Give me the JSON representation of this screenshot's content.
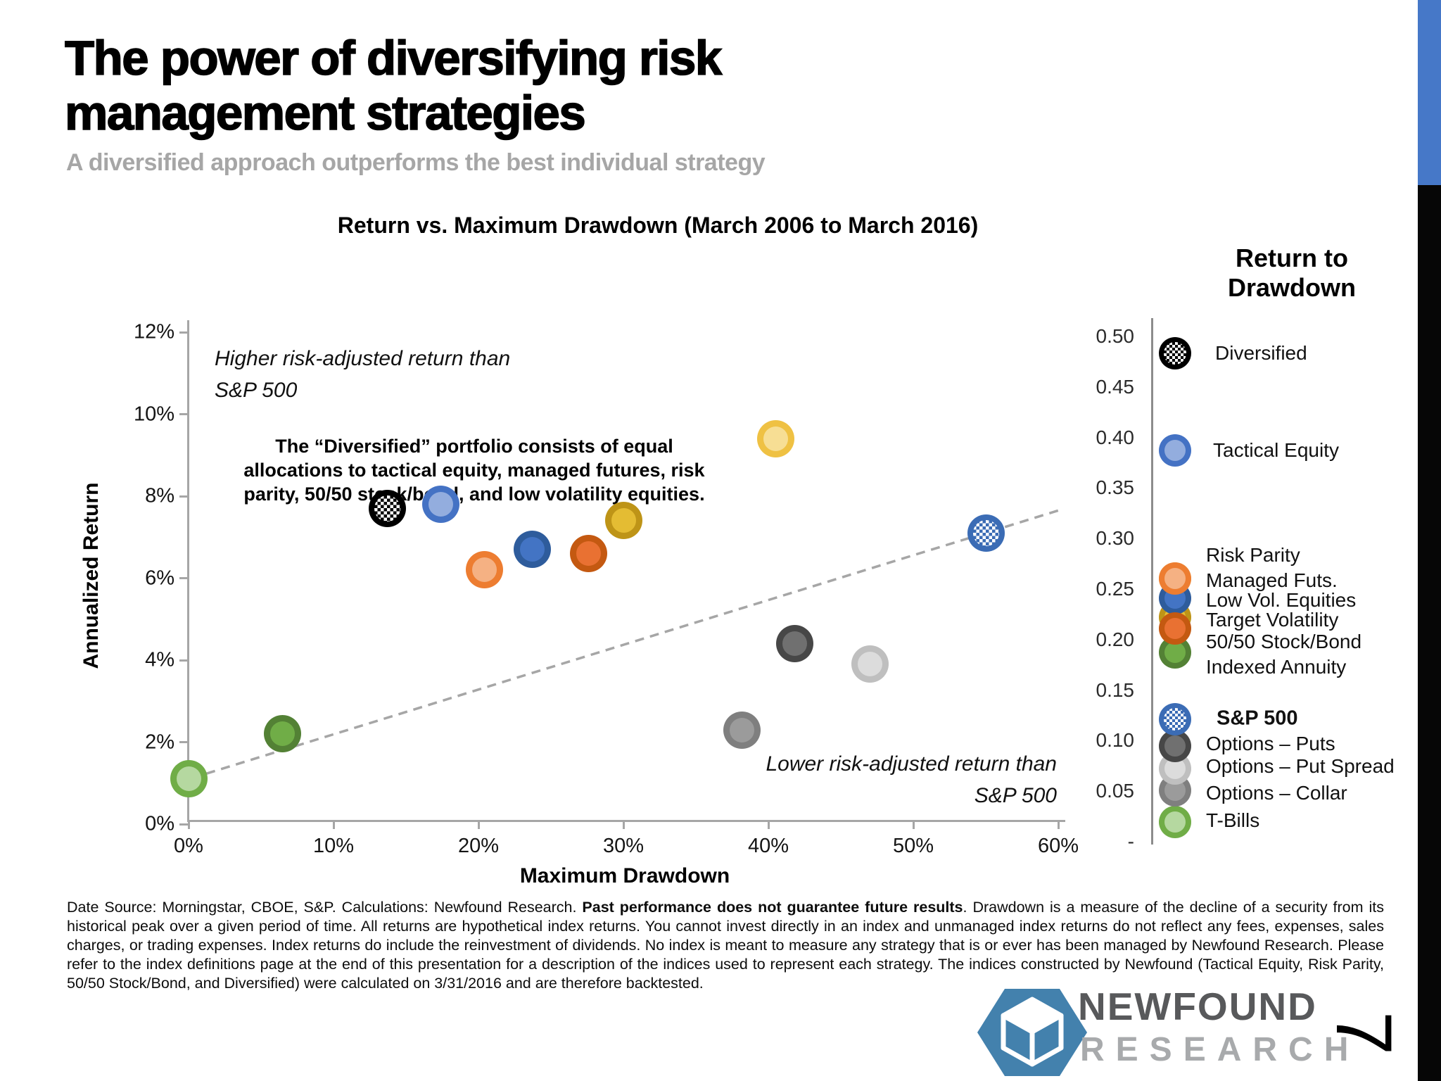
{
  "slide": {
    "title_line1": "The power of diversifying risk",
    "title_line2": "management strategies",
    "subtitle": "A diversified approach outperforms the best individual strategy",
    "page_number": "7"
  },
  "chart": {
    "title": "Return vs. Maximum Drawdown (March 2006 to March 2016)",
    "x_axis": {
      "label": "Maximum Drawdown",
      "tick_labels": [
        "0%",
        "10%",
        "20%",
        "30%",
        "40%",
        "50%",
        "60%"
      ],
      "tick_values": [
        0,
        10,
        20,
        30,
        40,
        50,
        60
      ]
    },
    "y_axis": {
      "label": "Annualized Return",
      "tick_labels": [
        "12%",
        "10%",
        "8%",
        "6%",
        "4%",
        "2%",
        "0%"
      ],
      "tick_values": [
        12,
        10,
        8,
        6,
        4,
        2,
        0
      ]
    },
    "right_axis": {
      "tick_labels": [
        "0.50",
        "0.45",
        "0.40",
        "0.35",
        "0.30",
        "0.25",
        "0.20",
        "0.15",
        "0.10",
        "0.05",
        "-"
      ]
    },
    "annotations": {
      "higher_line1": "Higher risk-adjusted return than",
      "higher_line2": "S&P 500",
      "note_line1": "The “Diversified” portfolio consists of equal",
      "note_line2": "allocations to tactical equity, managed futures, risk",
      "note_line3": "parity, 50/50 stock/bond, and low volatility equities.",
      "lower_line1": "Lower risk-adjusted return than",
      "lower_line2": "S&P 500"
    }
  },
  "chart_data": {
    "type": "scatter",
    "title": "Return vs. Maximum Drawdown (March 2006 to March 2016)",
    "xlabel": "Maximum Drawdown",
    "ylabel": "Annualized Return",
    "xlim": [
      0,
      60
    ],
    "ylim": [
      0,
      12
    ],
    "x_unit": "percent_max_drawdown",
    "y_unit": "percent_annualized_return",
    "grid": false,
    "legend_position": "right",
    "secondary_axis_label": "Return to Drawdown",
    "secondary_axis_ticks": [
      0.5,
      0.45,
      0.4,
      0.35,
      0.3,
      0.25,
      0.2,
      0.15,
      0.1,
      0.05,
      0
    ],
    "points": [
      {
        "name": "Diversified",
        "x": 13.7,
        "y": 7.7,
        "outer": "#000000",
        "checker": "#000000"
      },
      {
        "name": "Tactical Equity",
        "x": 17.4,
        "y": 7.8,
        "outer": "#4472C4",
        "inner": "#93ADDE"
      },
      {
        "name": "Managed Futs.",
        "x": 20.4,
        "y": 6.2,
        "outer": "#ED7D31",
        "inner": "#F5B183"
      },
      {
        "name": "Low Vol. Equities",
        "x": 23.7,
        "y": 6.7,
        "outer": "#2E5C9C",
        "inner": "#4374C4"
      },
      {
        "name": "50/50 Stock/Bond",
        "x": 27.6,
        "y": 6.6,
        "outer": "#C45911",
        "inner": "#E97132"
      },
      {
        "name": "Target Volatility",
        "x": 30.0,
        "y": 7.4,
        "outer": "#BE9417",
        "inner": "#E4BC33"
      },
      {
        "name": "Risk Parity",
        "x": 40.5,
        "y": 9.4,
        "outer": "#EFC143",
        "inner": "#F7DE94"
      },
      {
        "name": "S&P 500",
        "x": 55.0,
        "y": 7.1,
        "outer": "#3B6CB5",
        "checker": "#3B6CB5"
      },
      {
        "name": "Options – Puts",
        "x": 41.8,
        "y": 4.4,
        "outer": "#474747",
        "inner": "#707070"
      },
      {
        "name": "Options – Put Spread",
        "x": 47.0,
        "y": 3.9,
        "outer": "#BFBFBF",
        "inner": "#DCDCDC"
      },
      {
        "name": "Options – Collar",
        "x": 38.2,
        "y": 2.3,
        "outer": "#7F7F7F",
        "inner": "#9B9B9B"
      },
      {
        "name": "Indexed Annuity",
        "x": 6.5,
        "y": 2.2,
        "outer": "#538135",
        "inner": "#70AD47"
      },
      {
        "name": "T-Bills",
        "x": 0.0,
        "y": 1.1,
        "outer": "#70AD47",
        "inner": "#B5D8A0"
      }
    ],
    "trendline": {
      "x1": 0.2,
      "y1": 1.12,
      "x2": 60.0,
      "y2": 7.65,
      "style": "dashed",
      "color": "#A6A6A6"
    }
  },
  "legend": {
    "title_line1": "Return to",
    "title_line2": "Drawdown",
    "items": [
      {
        "label": "Diversified",
        "outer": "#000000",
        "checker": "#000000"
      },
      {
        "label": "Tactical Equity",
        "outer": "#4472C4",
        "inner": "#93ADDE"
      },
      {
        "label": "Risk Parity",
        "outer": "#EFC143",
        "inner": "#F7DE94"
      },
      {
        "label": "Managed Futs.",
        "outer": "#ED7D31",
        "inner": "#F5B183"
      },
      {
        "label": "Low Vol. Equities",
        "outer": "#2E5C9C",
        "inner": "#4374C4"
      },
      {
        "label": "Target Volatility",
        "outer": "#BE9417",
        "inner": "#E4BC33"
      },
      {
        "label": "50/50 Stock/Bond",
        "outer": "#C45911",
        "inner": "#E97132"
      },
      {
        "label": "Indexed Annuity",
        "outer": "#538135",
        "inner": "#70AD47"
      },
      {
        "label": "S&P 500",
        "bold": true,
        "outer": "#3B6CB5",
        "checker": "#3B6CB5"
      },
      {
        "label": "Options – Puts",
        "outer": "#474747",
        "inner": "#707070"
      },
      {
        "label": "Options – Put Spread",
        "outer": "#BFBFBF",
        "inner": "#DCDCDC"
      },
      {
        "label": "Options – Collar",
        "outer": "#7F7F7F",
        "inner": "#9B9B9B"
      },
      {
        "label": "T-Bills",
        "outer": "#70AD47",
        "inner": "#B5D8A0"
      }
    ]
  },
  "footer": {
    "part1": "Date Source: Morningstar, CBOE, S&P. Calculations: Newfound Research. ",
    "bold": "Past performance does not guarantee future results",
    "part2": ". Drawdown is a measure of the decline of a security from its historical peak over a given period of time. All returns are hypothetical index returns. You cannot invest directly in an index and unmanaged index returns do not reflect any fees, expenses, sales charges, or trading expenses. Index returns do include the reinvestment of dividends.  No index is meant to measure any strategy that is or ever has been managed by Newfound Research. Please refer to the index definitions page at the end of this presentation for a description of the indices used to represent each strategy. The indices constructed by Newfound (Tactical Equity, Risk Parity, 50/50 Stock/Bond, and Diversified) were calculated on 3/31/2016 and are therefore backtested."
  },
  "logo": {
    "name_line1": "NEWFOUND",
    "name_line2": "RESEARCH"
  },
  "colors": {
    "accent_bar_blue": "#4678C8",
    "accent_bar_black": "#060606",
    "axis_gray": "#A6A6A6",
    "subtitle_gray": "#A6A6A6",
    "logo_blue": "#4381AD"
  }
}
